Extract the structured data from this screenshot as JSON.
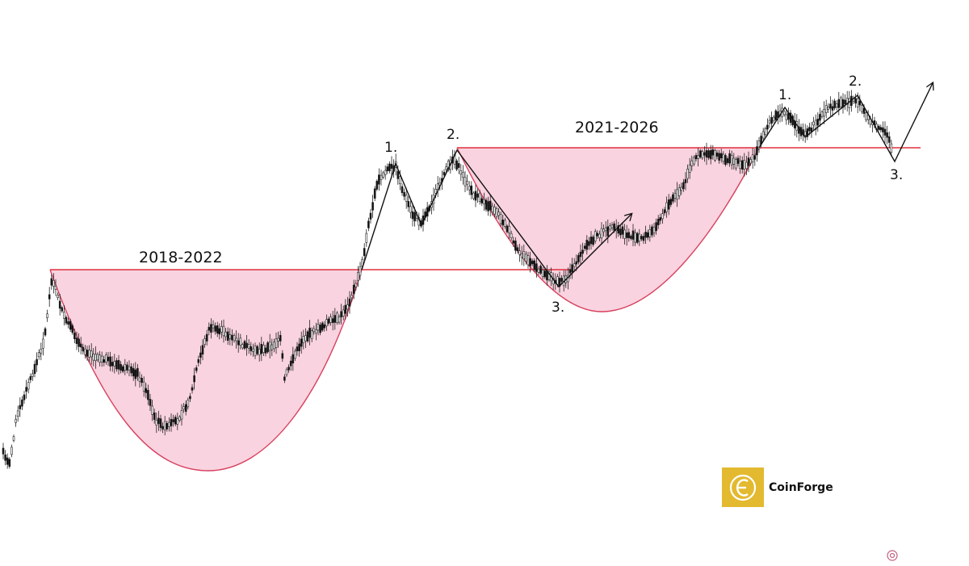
{
  "chart_data": {
    "type": "candlestick",
    "title": "",
    "xlabel": "",
    "ylabel": "",
    "grid": false,
    "legend": "none",
    "colors": {
      "resistance": "#e0303c",
      "cup_fill": "#f9d3e0",
      "cup_edge": "#d8405f",
      "candle_up": "#ffffff",
      "candle_down": "#111111",
      "arrow": "#111111"
    },
    "cups": [
      {
        "label": "2018-2022"
      },
      {
        "label": "2021-2026"
      }
    ],
    "swing_labels": {
      "first_a": "1.",
      "first_b": "2.",
      "first_c": "3.",
      "second_a": "1.",
      "second_b": "2.",
      "second_c": "3."
    }
  },
  "brand": {
    "name": "CoinForge",
    "logo_icon": "c-logo-icon",
    "logo_color": "#e3b92f"
  }
}
